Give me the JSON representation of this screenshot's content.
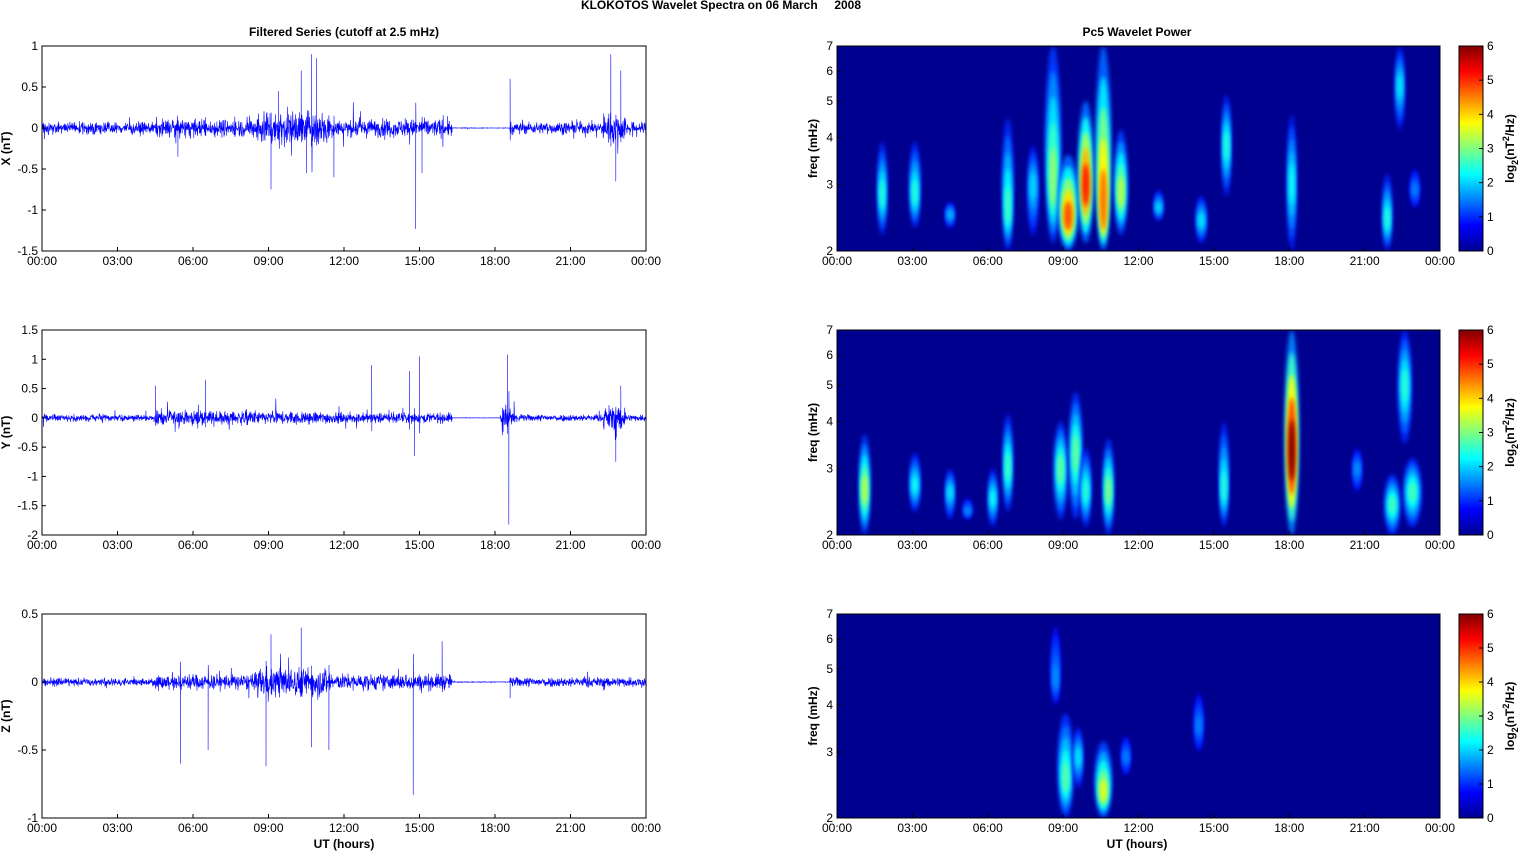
{
  "figure": {
    "title": "KLOKOTOS Wavelet Spectra on 06 March     2008",
    "left_column_title": "Filtered Series (cutoff at 2.5 mHz)",
    "right_column_title": "Pc5 Wavelet Power",
    "xlabel": "UT (hours)",
    "colorbar_label_prefix": "log",
    "colorbar_label_sub": "2",
    "colorbar_label_mid": "(nT",
    "colorbar_label_sup": "2",
    "colorbar_label_suffix": "/Hz)",
    "freq_ylabel": "freq (mHz)"
  },
  "colors": {
    "series_line": "#0000ff",
    "spectrum_background": "#00008f",
    "colormap": "jet"
  },
  "chart_data": [
    {
      "type": "line",
      "ylabel": "X (nT)",
      "xlabel": "",
      "x_ticks": [
        "00:00",
        "03:00",
        "06:00",
        "09:00",
        "12:00",
        "15:00",
        "18:00",
        "21:00",
        "00:00"
      ],
      "xlim_hours": [
        0,
        24
      ],
      "ylim": [
        -1.5,
        1
      ],
      "y_ticks": [
        1,
        0.5,
        0,
        -0.5,
        -1,
        -1.5
      ],
      "activity_profile": [
        {
          "from_h": 0,
          "to_h": 4.5,
          "amplitude": 0.1
        },
        {
          "from_h": 4.5,
          "to_h": 8.5,
          "amplitude": 0.15
        },
        {
          "from_h": 8.5,
          "to_h": 11.5,
          "amplitude": 0.3
        },
        {
          "from_h": 11.5,
          "to_h": 16.3,
          "amplitude": 0.15
        },
        {
          "from_h": 16.3,
          "to_h": 18.6,
          "amplitude": 0.005
        },
        {
          "from_h": 18.6,
          "to_h": 22.3,
          "amplitude": 0.1
        },
        {
          "from_h": 22.3,
          "to_h": 23.2,
          "amplitude": 0.25
        },
        {
          "from_h": 23.2,
          "to_h": 24,
          "amplitude": 0.1
        }
      ],
      "spikes": [
        {
          "t": 5.4,
          "v": -0.35
        },
        {
          "t": 9.1,
          "v": -0.75
        },
        {
          "t": 9.4,
          "v": 0.45
        },
        {
          "t": 10.3,
          "v": 0.7
        },
        {
          "t": 10.7,
          "v": 0.9
        },
        {
          "t": 10.9,
          "v": 0.85
        },
        {
          "t": 10.5,
          "v": -0.55
        },
        {
          "t": 11.6,
          "v": -0.6
        },
        {
          "t": 14.85,
          "v": -1.23
        },
        {
          "t": 15.1,
          "v": -0.55
        },
        {
          "t": 18.6,
          "v": 0.6
        },
        {
          "t": 22.6,
          "v": 0.9
        },
        {
          "t": 22.8,
          "v": -0.65
        },
        {
          "t": 23.0,
          "v": 0.7
        }
      ]
    },
    {
      "type": "line",
      "ylabel": "Y (nT)",
      "xlabel": "",
      "x_ticks": [
        "00:00",
        "03:00",
        "06:00",
        "09:00",
        "12:00",
        "15:00",
        "18:00",
        "21:00",
        "00:00"
      ],
      "xlim_hours": [
        0,
        24
      ],
      "ylim": [
        -2,
        1.5
      ],
      "y_ticks": [
        1.5,
        1,
        0.5,
        0,
        -0.5,
        -1,
        -1.5,
        -2
      ],
      "activity_profile": [
        {
          "from_h": 0,
          "to_h": 4.5,
          "amplitude": 0.08
        },
        {
          "from_h": 4.5,
          "to_h": 8.5,
          "amplitude": 0.18
        },
        {
          "from_h": 8.5,
          "to_h": 11.5,
          "amplitude": 0.15
        },
        {
          "from_h": 11.5,
          "to_h": 16.3,
          "amplitude": 0.12
        },
        {
          "from_h": 16.3,
          "to_h": 18.2,
          "amplitude": 0.005
        },
        {
          "from_h": 18.2,
          "to_h": 18.8,
          "amplitude": 0.3
        },
        {
          "from_h": 18.8,
          "to_h": 22.3,
          "amplitude": 0.08
        },
        {
          "from_h": 22.3,
          "to_h": 23.2,
          "amplitude": 0.3
        },
        {
          "from_h": 23.2,
          "to_h": 24,
          "amplitude": 0.08
        }
      ],
      "spikes": [
        {
          "t": 4.5,
          "v": 0.55
        },
        {
          "t": 6.5,
          "v": 0.65
        },
        {
          "t": 13.1,
          "v": 0.9
        },
        {
          "t": 14.6,
          "v": 0.8
        },
        {
          "t": 14.8,
          "v": -0.65
        },
        {
          "t": 15.0,
          "v": 1.05
        },
        {
          "t": 18.5,
          "v": 1.08
        },
        {
          "t": 18.55,
          "v": -1.82
        },
        {
          "t": 22.8,
          "v": -0.75
        },
        {
          "t": 23.0,
          "v": 0.55
        }
      ]
    },
    {
      "type": "line",
      "ylabel": "Z (nT)",
      "xlabel": "UT (hours)",
      "x_ticks": [
        "00:00",
        "03:00",
        "06:00",
        "09:00",
        "12:00",
        "15:00",
        "18:00",
        "21:00",
        "00:00"
      ],
      "xlim_hours": [
        0,
        24
      ],
      "ylim": [
        -1,
        0.5
      ],
      "y_ticks": [
        0.5,
        0,
        -0.5,
        -1
      ],
      "activity_profile": [
        {
          "from_h": 0,
          "to_h": 4.5,
          "amplitude": 0.04
        },
        {
          "from_h": 4.5,
          "to_h": 8.5,
          "amplitude": 0.08
        },
        {
          "from_h": 8.5,
          "to_h": 11.5,
          "amplitude": 0.15
        },
        {
          "from_h": 11.5,
          "to_h": 16.3,
          "amplitude": 0.08
        },
        {
          "from_h": 16.3,
          "to_h": 18.6,
          "amplitude": 0.004
        },
        {
          "from_h": 18.6,
          "to_h": 24,
          "amplitude": 0.05
        }
      ],
      "spikes": [
        {
          "t": 5.5,
          "v": -0.6
        },
        {
          "t": 6.6,
          "v": -0.5
        },
        {
          "t": 8.9,
          "v": -0.62
        },
        {
          "t": 9.1,
          "v": 0.35
        },
        {
          "t": 10.3,
          "v": 0.4
        },
        {
          "t": 10.7,
          "v": -0.48
        },
        {
          "t": 11.4,
          "v": -0.5
        },
        {
          "t": 14.75,
          "v": -0.83
        },
        {
          "t": 15.9,
          "v": 0.3
        },
        {
          "t": 18.6,
          "v": -0.12
        }
      ]
    },
    {
      "type": "heatmap",
      "title": "Pc5 Wavelet Power",
      "ylabel": "freq (mHz)",
      "x_ticks": [
        "00:00",
        "03:00",
        "06:00",
        "09:00",
        "12:00",
        "15:00",
        "18:00",
        "21:00",
        "00:00"
      ],
      "xlim_hours": [
        0,
        24
      ],
      "y_scale": "log",
      "ylim_mHz": [
        2,
        7
      ],
      "y_ticks": [
        7,
        6,
        5,
        4,
        3,
        2
      ],
      "colorbar_range": [
        0,
        6
      ],
      "colorbar_ticks": [
        6,
        5,
        4,
        3,
        2,
        1,
        0
      ],
      "blobs": [
        {
          "t": 1.8,
          "f": 2.8,
          "width_h": 0.12,
          "f_extent_mHz": [
            2.2,
            3.9
          ],
          "power": 2.0
        },
        {
          "t": 3.1,
          "f": 2.8,
          "width_h": 0.15,
          "f_extent_mHz": [
            2.3,
            3.9
          ],
          "power": 2.0
        },
        {
          "t": 4.5,
          "f": 2.5,
          "width_h": 0.08,
          "f_extent_mHz": [
            2.3,
            2.7
          ],
          "power": 1.3
        },
        {
          "t": 6.8,
          "f": 2.5,
          "width_h": 0.15,
          "f_extent_mHz": [
            2.0,
            4.5
          ],
          "power": 2.2
        },
        {
          "t": 7.8,
          "f": 3.0,
          "width_h": 0.15,
          "f_extent_mHz": [
            2.2,
            3.8
          ],
          "power": 1.5
        },
        {
          "t": 8.6,
          "f": 2.9,
          "width_h": 0.25,
          "f_extent_mHz": [
            2.1,
            7.0
          ],
          "power": 2.7
        },
        {
          "t": 9.2,
          "f": 2.4,
          "width_h": 0.35,
          "f_extent_mHz": [
            2.0,
            3.6
          ],
          "power": 4.6
        },
        {
          "t": 9.9,
          "f": 2.9,
          "width_h": 0.25,
          "f_extent_mHz": [
            2.1,
            5.0
          ],
          "power": 5.0
        },
        {
          "t": 10.6,
          "f": 2.4,
          "width_h": 0.25,
          "f_extent_mHz": [
            2.0,
            7.0
          ],
          "power": 4.4
        },
        {
          "t": 11.3,
          "f": 2.8,
          "width_h": 0.2,
          "f_extent_mHz": [
            2.2,
            4.2
          ],
          "power": 3.0
        },
        {
          "t": 12.8,
          "f": 2.6,
          "width_h": 0.12,
          "f_extent_mHz": [
            2.4,
            2.9
          ],
          "power": 1.5
        },
        {
          "t": 14.5,
          "f": 2.4,
          "width_h": 0.15,
          "f_extent_mHz": [
            2.1,
            2.8
          ],
          "power": 1.6
        },
        {
          "t": 15.5,
          "f": 3.8,
          "width_h": 0.12,
          "f_extent_mHz": [
            2.8,
            5.2
          ],
          "power": 2.0
        },
        {
          "t": 18.1,
          "f": 3.0,
          "width_h": 0.12,
          "f_extent_mHz": [
            2.0,
            4.6
          ],
          "power": 1.8
        },
        {
          "t": 21.9,
          "f": 2.4,
          "width_h": 0.12,
          "f_extent_mHz": [
            2.0,
            3.2
          ],
          "power": 2.0
        },
        {
          "t": 22.4,
          "f": 5.5,
          "width_h": 0.12,
          "f_extent_mHz": [
            4.2,
            7.0
          ],
          "power": 1.6
        },
        {
          "t": 23.0,
          "f": 2.9,
          "width_h": 0.08,
          "f_extent_mHz": [
            2.6,
            3.3
          ],
          "power": 0.9
        }
      ]
    },
    {
      "type": "heatmap",
      "title": "",
      "ylabel": "freq (mHz)",
      "x_ticks": [
        "00:00",
        "03:00",
        "06:00",
        "09:00",
        "12:00",
        "15:00",
        "18:00",
        "21:00",
        "00:00"
      ],
      "xlim_hours": [
        0,
        24
      ],
      "y_scale": "log",
      "ylim_mHz": [
        2,
        7
      ],
      "y_ticks": [
        7,
        6,
        5,
        4,
        3,
        2
      ],
      "colorbar_range": [
        0,
        6
      ],
      "colorbar_ticks": [
        6,
        5,
        4,
        3,
        2,
        1,
        0
      ],
      "blobs": [
        {
          "t": 1.1,
          "f": 2.6,
          "width_h": 0.15,
          "f_extent_mHz": [
            2.0,
            3.7
          ],
          "power": 3.0
        },
        {
          "t": 3.1,
          "f": 2.7,
          "width_h": 0.15,
          "f_extent_mHz": [
            2.3,
            3.3
          ],
          "power": 1.8
        },
        {
          "t": 4.5,
          "f": 2.6,
          "width_h": 0.1,
          "f_extent_mHz": [
            2.2,
            3.0
          ],
          "power": 1.6
        },
        {
          "t": 5.2,
          "f": 2.3,
          "width_h": 0.08,
          "f_extent_mHz": [
            2.2,
            2.5
          ],
          "power": 1.0
        },
        {
          "t": 6.2,
          "f": 2.5,
          "width_h": 0.12,
          "f_extent_mHz": [
            2.1,
            3.0
          ],
          "power": 1.8
        },
        {
          "t": 6.8,
          "f": 3.0,
          "width_h": 0.12,
          "f_extent_mHz": [
            2.3,
            4.2
          ],
          "power": 2.2
        },
        {
          "t": 8.9,
          "f": 3.0,
          "width_h": 0.2,
          "f_extent_mHz": [
            2.2,
            4.0
          ],
          "power": 2.4
        },
        {
          "t": 9.5,
          "f": 3.3,
          "width_h": 0.2,
          "f_extent_mHz": [
            2.2,
            4.8
          ],
          "power": 2.4
        },
        {
          "t": 9.9,
          "f": 2.6,
          "width_h": 0.15,
          "f_extent_mHz": [
            2.1,
            3.4
          ],
          "power": 2.0
        },
        {
          "t": 10.8,
          "f": 2.6,
          "width_h": 0.15,
          "f_extent_mHz": [
            2.0,
            3.6
          ],
          "power": 2.6
        },
        {
          "t": 15.4,
          "f": 2.6,
          "width_h": 0.12,
          "f_extent_mHz": [
            2.1,
            4.0
          ],
          "power": 2.0
        },
        {
          "t": 18.1,
          "f": 3.2,
          "width_h": 0.22,
          "f_extent_mHz": [
            2.0,
            7.0
          ],
          "power": 6.0
        },
        {
          "t": 20.7,
          "f": 3.0,
          "width_h": 0.08,
          "f_extent_mHz": [
            2.6,
            3.4
          ],
          "power": 1.0
        },
        {
          "t": 22.1,
          "f": 2.4,
          "width_h": 0.25,
          "f_extent_mHz": [
            2.0,
            2.9
          ],
          "power": 2.2
        },
        {
          "t": 22.6,
          "f": 5.0,
          "width_h": 0.2,
          "f_extent_mHz": [
            3.5,
            7.0
          ],
          "power": 2.0
        },
        {
          "t": 22.9,
          "f": 2.6,
          "width_h": 0.3,
          "f_extent_mHz": [
            2.1,
            3.2
          ],
          "power": 2.2
        }
      ]
    },
    {
      "type": "heatmap",
      "title": "",
      "ylabel": "freq (mHz)",
      "x_ticks": [
        "00:00",
        "03:00",
        "06:00",
        "09:00",
        "12:00",
        "15:00",
        "18:00",
        "21:00",
        "00:00"
      ],
      "xlim_hours": [
        0,
        24
      ],
      "y_scale": "log",
      "ylim_mHz": [
        2,
        7
      ],
      "y_ticks": [
        7,
        6,
        5,
        4,
        3,
        2
      ],
      "colorbar_range": [
        0,
        6
      ],
      "colorbar_ticks": [
        6,
        5,
        4,
        3,
        2,
        1,
        0
      ],
      "blobs": [
        {
          "t": 8.7,
          "f": 4.6,
          "width_h": 0.1,
          "f_extent_mHz": [
            4.0,
            6.5
          ],
          "power": 1.0
        },
        {
          "t": 9.1,
          "f": 2.5,
          "width_h": 0.25,
          "f_extent_mHz": [
            2.0,
            3.8
          ],
          "power": 2.3
        },
        {
          "t": 9.6,
          "f": 2.9,
          "width_h": 0.12,
          "f_extent_mHz": [
            2.4,
            3.5
          ],
          "power": 1.6
        },
        {
          "t": 10.6,
          "f": 2.3,
          "width_h": 0.28,
          "f_extent_mHz": [
            2.0,
            3.2
          ],
          "power": 3.2
        },
        {
          "t": 11.5,
          "f": 2.9,
          "width_h": 0.08,
          "f_extent_mHz": [
            2.6,
            3.3
          ],
          "power": 0.9
        },
        {
          "t": 14.4,
          "f": 3.5,
          "width_h": 0.08,
          "f_extent_mHz": [
            3.0,
            4.3
          ],
          "power": 0.9
        }
      ]
    }
  ]
}
